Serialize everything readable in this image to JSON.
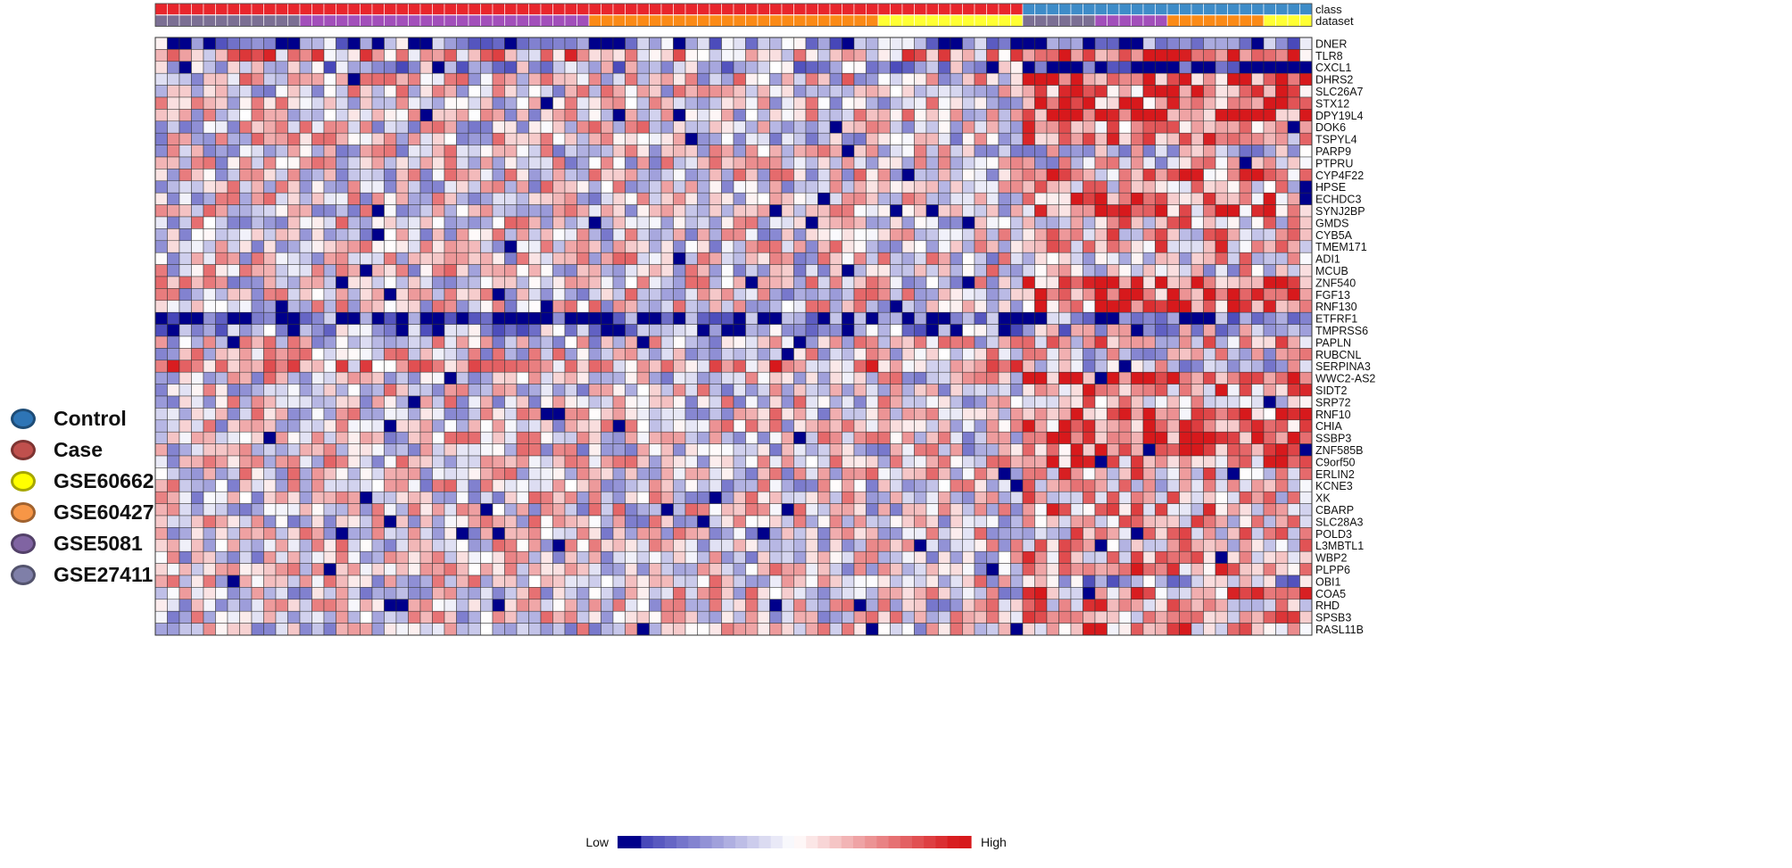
{
  "chart_data": {
    "type": "heatmap",
    "title": "",
    "annotation_tracks": [
      {
        "name": "class",
        "levels": [
          "Case",
          "Control"
        ]
      },
      {
        "name": "dataset",
        "levels": [
          "GSE27411",
          "GSE5081",
          "GSE60427",
          "GSE60662"
        ]
      }
    ],
    "column_groups": [
      {
        "class": "Case",
        "dataset": "GSE27411",
        "n": 12
      },
      {
        "class": "Case",
        "dataset": "GSE5081",
        "n": 24
      },
      {
        "class": "Case",
        "dataset": "GSE60427",
        "n": 24
      },
      {
        "class": "Case",
        "dataset": "GSE60662",
        "n": 12
      },
      {
        "class": "Control",
        "dataset": "GSE27411",
        "n": 6
      },
      {
        "class": "Control",
        "dataset": "GSE5081",
        "n": 6
      },
      {
        "class": "Control",
        "dataset": "GSE60427",
        "n": 8
      },
      {
        "class": "Control",
        "dataset": "GSE60662",
        "n": 4
      }
    ],
    "rows": [
      "DNER",
      "TLR8",
      "CXCL1",
      "DHRS2",
      "SLC26A7",
      "STX12",
      "DPY19L4",
      "DOK6",
      "TSPYL4",
      "PARP9",
      "PTPRU",
      "CYP4F22",
      "HPSE",
      "ECHDC3",
      "SYNJ2BP",
      "GMDS",
      "CYB5A",
      "TMEM171",
      "ADI1",
      "MCUB",
      "ZNF540",
      "FGF13",
      "RNF130",
      "ETFRF1",
      "TMPRSS6",
      "PAPLN",
      "RUBCNL",
      "SERPINA3",
      "WWC2-AS2",
      "SIDT2",
      "SRP72",
      "RNF10",
      "CHIA",
      "SSBP3",
      "ZNF585B",
      "C9orf50",
      "ERLIN2",
      "KCNE3",
      "XK",
      "CBARP",
      "SLC28A3",
      "POLD3",
      "L3MBTL1",
      "WBP2",
      "PLPP6",
      "OBI1",
      "COA5",
      "RHD",
      "SPSB3",
      "RASL11B"
    ],
    "row_means": [
      -0.6,
      0.35,
      -0.3,
      0.05,
      0.0,
      0.0,
      0.0,
      0.0,
      0.0,
      0.0,
      0.0,
      0.0,
      0.0,
      0.0,
      0.0,
      0.0,
      0.0,
      0.0,
      0.0,
      0.0,
      0.0,
      0.0,
      0.0,
      -0.9,
      -0.5,
      0.0,
      0.0,
      0.35,
      0.0,
      0.0,
      0.0,
      0.0,
      0.0,
      0.0,
      0.0,
      0.0,
      0.0,
      0.0,
      0.0,
      0.0,
      0.0,
      0.0,
      0.0,
      0.0,
      0.0,
      0.0,
      0.0,
      0.0,
      0.0,
      0.0
    ],
    "control_shift": [
      0.0,
      0.3,
      -0.9,
      0.7,
      0.6,
      0.7,
      0.8,
      0.5,
      0.3,
      -0.2,
      0.0,
      0.4,
      0.1,
      0.6,
      0.5,
      0.2,
      0.2,
      0.4,
      0.1,
      0.0,
      0.7,
      0.8,
      0.6,
      0.1,
      0.3,
      0.2,
      0.0,
      -0.4,
      0.8,
      0.4,
      0.2,
      0.6,
      0.6,
      0.8,
      0.7,
      0.5,
      0.3,
      0.1,
      0.2,
      0.3,
      0.2,
      0.2,
      0.2,
      0.3,
      0.4,
      -0.2,
      0.4,
      0.3,
      0.3,
      0.4
    ],
    "value_range": [
      -1,
      1
    ],
    "colorbar": {
      "low_label": "Low",
      "high_label": "High",
      "low_color": "#00008B",
      "mid_color": "#FFFFFF",
      "high_color": "#D7191C"
    },
    "legend": [
      {
        "label": "Control",
        "color": "#2E75B6"
      },
      {
        "label": "Case",
        "color": "#C0504D"
      },
      {
        "label": "GSE60662",
        "color": "#FFFF00"
      },
      {
        "label": "GSE60427",
        "color": "#F79646"
      },
      {
        "label": "GSE5081",
        "color": "#8064A2"
      },
      {
        "label": "GSE27411",
        "color": "#7F7FA8"
      }
    ],
    "annotation_colors": {
      "Case": "#E8262C",
      "Control": "#3E8CC8",
      "GSE27411": "#7B6F93",
      "GSE5081": "#A24FBA",
      "GSE60427": "#FB8A16",
      "GSE60662": "#FFFF33"
    }
  }
}
